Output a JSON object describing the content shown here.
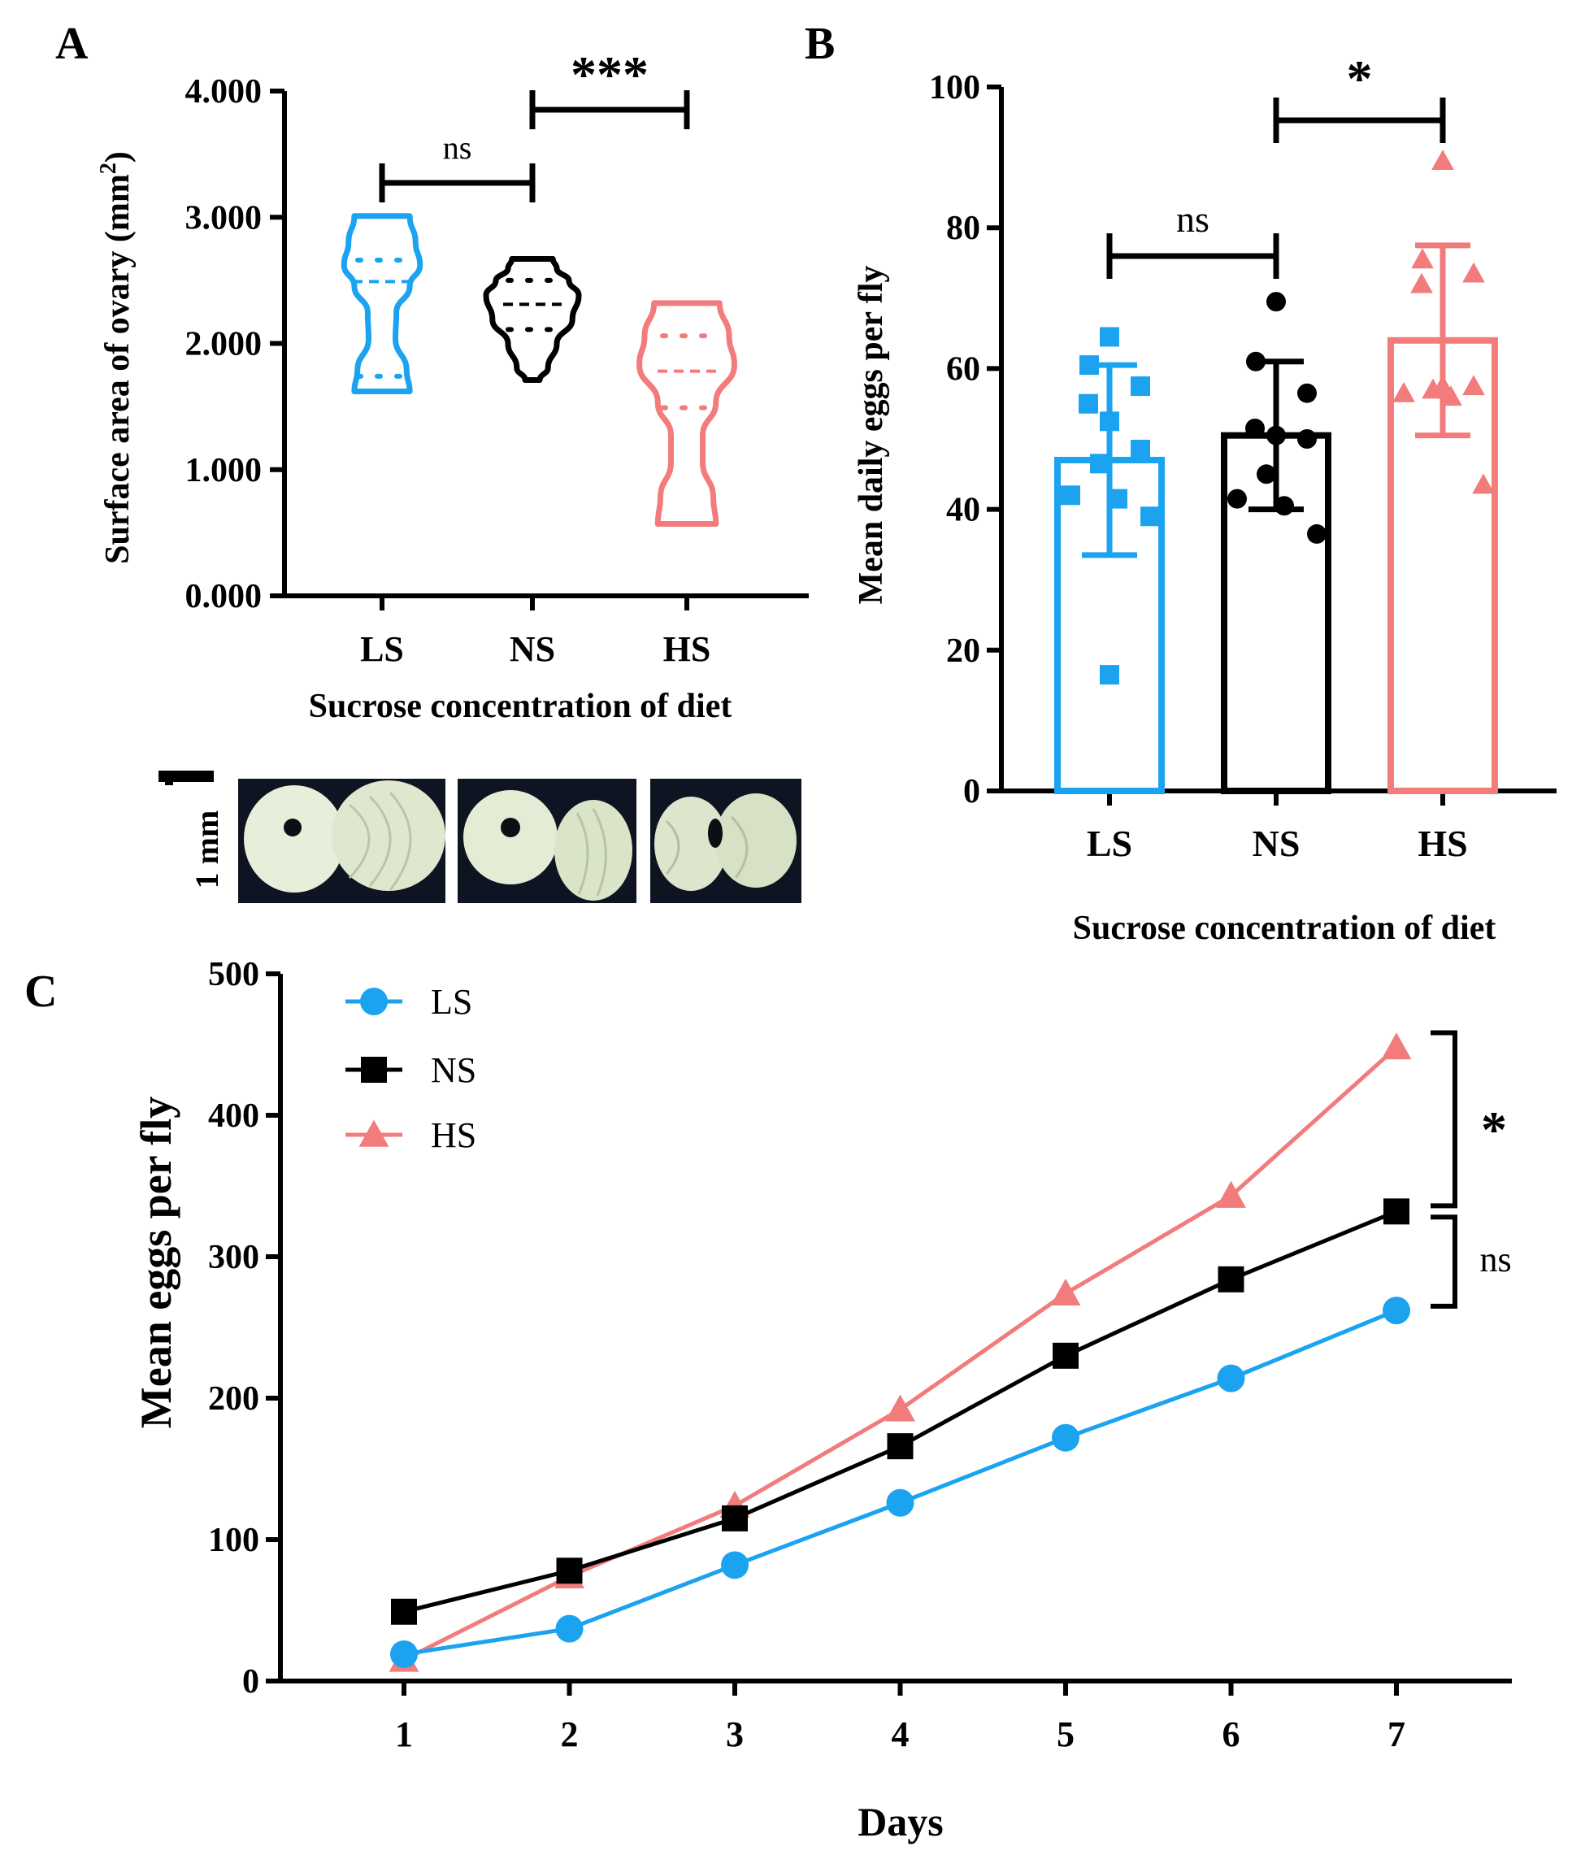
{
  "chart_data": [
    {
      "panel": "A",
      "type": "violin",
      "ylabel": "Surface area of ovary (mm",
      "ylabel_sup": "2",
      "ylabel_end": ")",
      "xlabel": "Sucrose concentration of diet",
      "categories": [
        "LS",
        "NS",
        "HS"
      ],
      "yticks": [
        "0.000",
        "1.000",
        "2.000",
        "3.000",
        "4.000"
      ],
      "ylim": [
        0,
        4
      ],
      "colors": [
        "#1ca3f0",
        "#000000",
        "#f27b7b"
      ],
      "violins": [
        {
          "min": 1.62,
          "max": 3.01,
          "q1": 1.74,
          "median": 2.49,
          "q3": 2.66
        },
        {
          "min": 1.71,
          "max": 2.67,
          "q1": 2.11,
          "median": 2.31,
          "q3": 2.5
        },
        {
          "min": 0.57,
          "max": 2.32,
          "q1": 1.49,
          "median": 1.78,
          "q3": 2.06
        }
      ],
      "significance": [
        {
          "from": 0,
          "to": 1,
          "label": "ns"
        },
        {
          "from": 1,
          "to": 2,
          "label": "***"
        }
      ],
      "scale_bar_label": "1 mm"
    },
    {
      "panel": "B",
      "type": "bar",
      "ylabel": "Mean daily eggs per fly",
      "xlabel": "Sucrose concentration of diet",
      "categories": [
        "LS",
        "NS",
        "HS"
      ],
      "values": [
        47,
        50.5,
        64
      ],
      "sd": [
        13.5,
        10.5,
        13.5
      ],
      "yticks": [
        "0",
        "20",
        "40",
        "60",
        "80",
        "100"
      ],
      "ylim": [
        0,
        100
      ],
      "colors": [
        "#1ca3f0",
        "#000000",
        "#f27b7b"
      ],
      "points": [
        [
          64.5,
          60.5,
          57.5,
          55,
          52.5,
          48.5,
          46.5,
          42,
          41.5,
          39,
          16.5
        ],
        [
          69.5,
          61,
          56.5,
          51.5,
          50.5,
          50,
          45,
          41.5,
          40.5,
          36.5
        ],
        [
          89.5,
          75.5,
          73.5,
          72,
          57.5,
          57.5,
          57,
          56.5,
          56,
          43.5
        ]
      ],
      "markers": [
        "square",
        "circle",
        "triangle"
      ],
      "significance": [
        {
          "from": 0,
          "to": 1,
          "label": "ns"
        },
        {
          "from": 1,
          "to": 2,
          "label": "*"
        }
      ]
    },
    {
      "panel": "C",
      "type": "line",
      "ylabel": "Mean eggs per fly",
      "xlabel": "Days",
      "x": [
        1,
        2,
        3,
        4,
        5,
        6,
        7
      ],
      "yticks": [
        "0",
        "100",
        "200",
        "300",
        "400",
        "500"
      ],
      "ylim": [
        0,
        500
      ],
      "series": [
        {
          "name": "LS",
          "color": "#1ca3f0",
          "marker": "circle",
          "values": [
            19,
            37,
            82,
            126,
            172,
            214,
            262
          ]
        },
        {
          "name": "NS",
          "color": "#000000",
          "marker": "square",
          "values": [
            49,
            78,
            115,
            166,
            230,
            284,
            332
          ]
        },
        {
          "name": "HS",
          "color": "#f27b7b",
          "marker": "triangle",
          "values": [
            15,
            74,
            124,
            192,
            274,
            343,
            448
          ]
        }
      ],
      "significance": [
        {
          "label": "*"
        },
        {
          "label": "ns"
        }
      ],
      "legend_placement": "top-left"
    }
  ],
  "panel_labels": [
    "A",
    "B",
    "C"
  ]
}
